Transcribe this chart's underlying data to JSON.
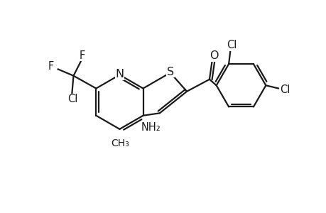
{
  "bg_color": "#ffffff",
  "line_color": "#1a1a1a",
  "line_width": 1.6,
  "font_size": 10.5,
  "xlim": [
    0,
    10
  ],
  "ylim": [
    0,
    7
  ]
}
